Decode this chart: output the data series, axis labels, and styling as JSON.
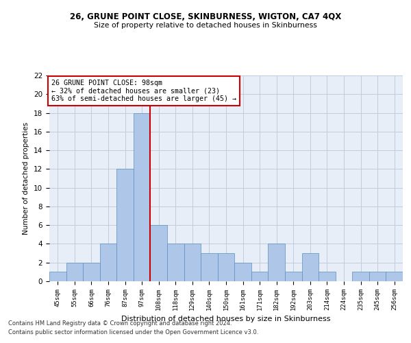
{
  "title": "26, GRUNE POINT CLOSE, SKINBURNESS, WIGTON, CA7 4QX",
  "subtitle": "Size of property relative to detached houses in Skinburness",
  "xlabel": "Distribution of detached houses by size in Skinburness",
  "ylabel": "Number of detached properties",
  "categories": [
    "45sqm",
    "55sqm",
    "66sqm",
    "76sqm",
    "87sqm",
    "97sqm",
    "108sqm",
    "118sqm",
    "129sqm",
    "140sqm",
    "150sqm",
    "161sqm",
    "171sqm",
    "182sqm",
    "192sqm",
    "203sqm",
    "214sqm",
    "224sqm",
    "235sqm",
    "245sqm",
    "256sqm"
  ],
  "values": [
    1,
    2,
    2,
    4,
    12,
    18,
    6,
    4,
    4,
    3,
    3,
    2,
    1,
    4,
    1,
    3,
    1,
    0,
    1,
    1,
    1
  ],
  "bar_color": "#aec6e8",
  "bar_edge_color": "#5a8fc0",
  "vline_color": "#cc0000",
  "annotation_title": "26 GRUNE POINT CLOSE: 98sqm",
  "annotation_line1": "← 32% of detached houses are smaller (23)",
  "annotation_line2": "63% of semi-detached houses are larger (45) →",
  "annotation_box_color": "#ffffff",
  "annotation_box_edge": "#cc0000",
  "ylim": [
    0,
    22
  ],
  "yticks": [
    0,
    2,
    4,
    6,
    8,
    10,
    12,
    14,
    16,
    18,
    20,
    22
  ],
  "grid_color": "#c0ccdd",
  "background_color": "#e8eef7",
  "footnote1": "Contains HM Land Registry data © Crown copyright and database right 2024.",
  "footnote2": "Contains public sector information licensed under the Open Government Licence v3.0."
}
